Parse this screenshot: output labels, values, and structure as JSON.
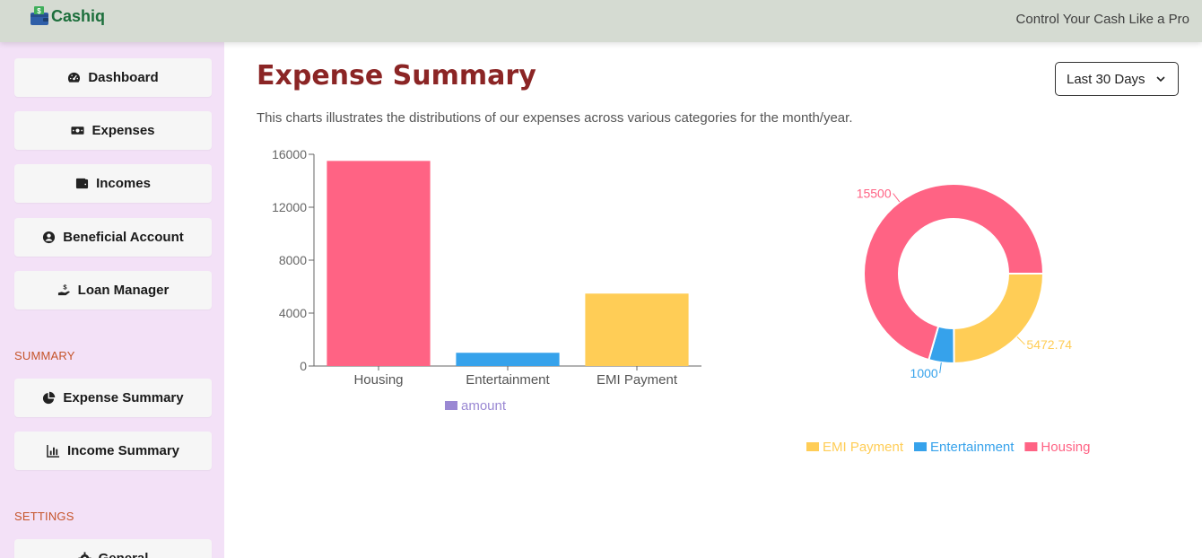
{
  "app": {
    "name": "Cashiq",
    "tagline": "Control Your Cash Like a Pro"
  },
  "sidebar": {
    "items": [
      {
        "label": "Dashboard",
        "icon": "gauge-icon"
      },
      {
        "label": "Expenses",
        "icon": "money-icon"
      },
      {
        "label": "Incomes",
        "icon": "wallet-icon"
      },
      {
        "label": "Beneficial Account",
        "icon": "user-circle-icon"
      },
      {
        "label": "Loan Manager",
        "icon": "hand-money-icon"
      }
    ],
    "summary_label": "SUMMARY",
    "summary_items": [
      {
        "label": "Expense Summary",
        "icon": "pie-chart-icon"
      },
      {
        "label": "Income Summary",
        "icon": "bar-chart-icon"
      }
    ],
    "settings_label": "SETTINGS",
    "settings_items": [
      {
        "label": "General",
        "icon": "gear-icon"
      }
    ]
  },
  "main": {
    "title": "Expense Summary",
    "range_value": "Last 30 Days",
    "description": "This charts illustrates the distributions of our expenses across various categories for the month/year."
  },
  "colors": {
    "housing": "#ff6384",
    "entertainment": "#36a2eb",
    "emi": "#ffcd56",
    "amount_legend": "#9a88d3",
    "title": "#8b2525",
    "sidebar_bg": "#f3e1f7",
    "topbar_bg": "#d5dbd2",
    "brand": "#1d6f3c",
    "section": "#c5542a"
  },
  "chart_data": [
    {
      "type": "bar",
      "categories": [
        "Housing",
        "Entertainment",
        "EMI Payment"
      ],
      "series": [
        {
          "name": "amount",
          "values": [
            15500,
            1000,
            5472.74
          ]
        }
      ],
      "ylim": [
        0,
        16000
      ],
      "yticks": [
        0,
        4000,
        8000,
        12000,
        16000
      ],
      "legend": "bottom",
      "grid": false
    },
    {
      "type": "pie",
      "donut": true,
      "labels": [
        "EMI Payment",
        "Entertainment",
        "Housing"
      ],
      "values": [
        5472.74,
        1000,
        15500
      ],
      "data_labels": [
        "5472.74",
        "1000",
        "15500"
      ],
      "legend": "bottom"
    }
  ]
}
